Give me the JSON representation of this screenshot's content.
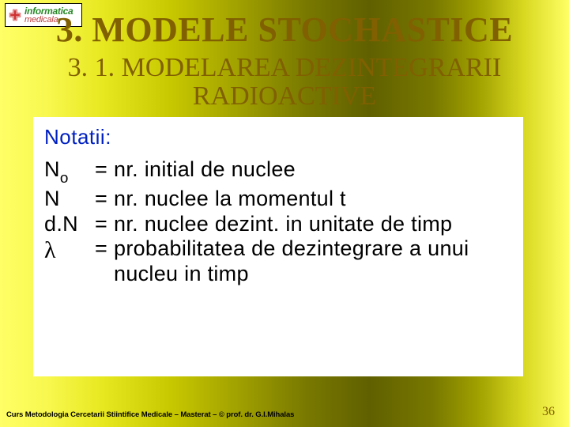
{
  "logo": {
    "line1": "informatica",
    "line2": "medicala"
  },
  "title": "3. MODELE STOCHASTICE",
  "subtitle_line1": "3. 1. MODELAREA DEZINTEGRARII",
  "subtitle_line2": "RADIOACTIVE",
  "notations_label": "Notatii:",
  "definitions": {
    "n0": {
      "symbol_html": "N<span class=\"sub\">o</span>",
      "eq": "=",
      "desc": "nr. initial de nuclee"
    },
    "n": {
      "symbol_html": "N",
      "eq": "=",
      "desc": "nr. nuclee la momentul t"
    },
    "dn": {
      "symbol_html": "d.N",
      "eq": "=",
      "desc": "nr. nuclee dezint. in unitate de timp"
    },
    "lambda": {
      "symbol_html": "<span class=\"lambda\">λ</span>",
      "eq": "=",
      "desc": "probabilitatea de dezintegrare a unui nucleu in timp"
    }
  },
  "footer": "Curs Metodologia Cercetarii Stiintifice Medicale – Masterat – © prof. dr. G.I.Mihalas",
  "page_number": "36",
  "colors": {
    "heading": "#806000",
    "notati": "#0020c0",
    "logo_green": "#2a8a2a",
    "logo_red": "#c04040"
  }
}
